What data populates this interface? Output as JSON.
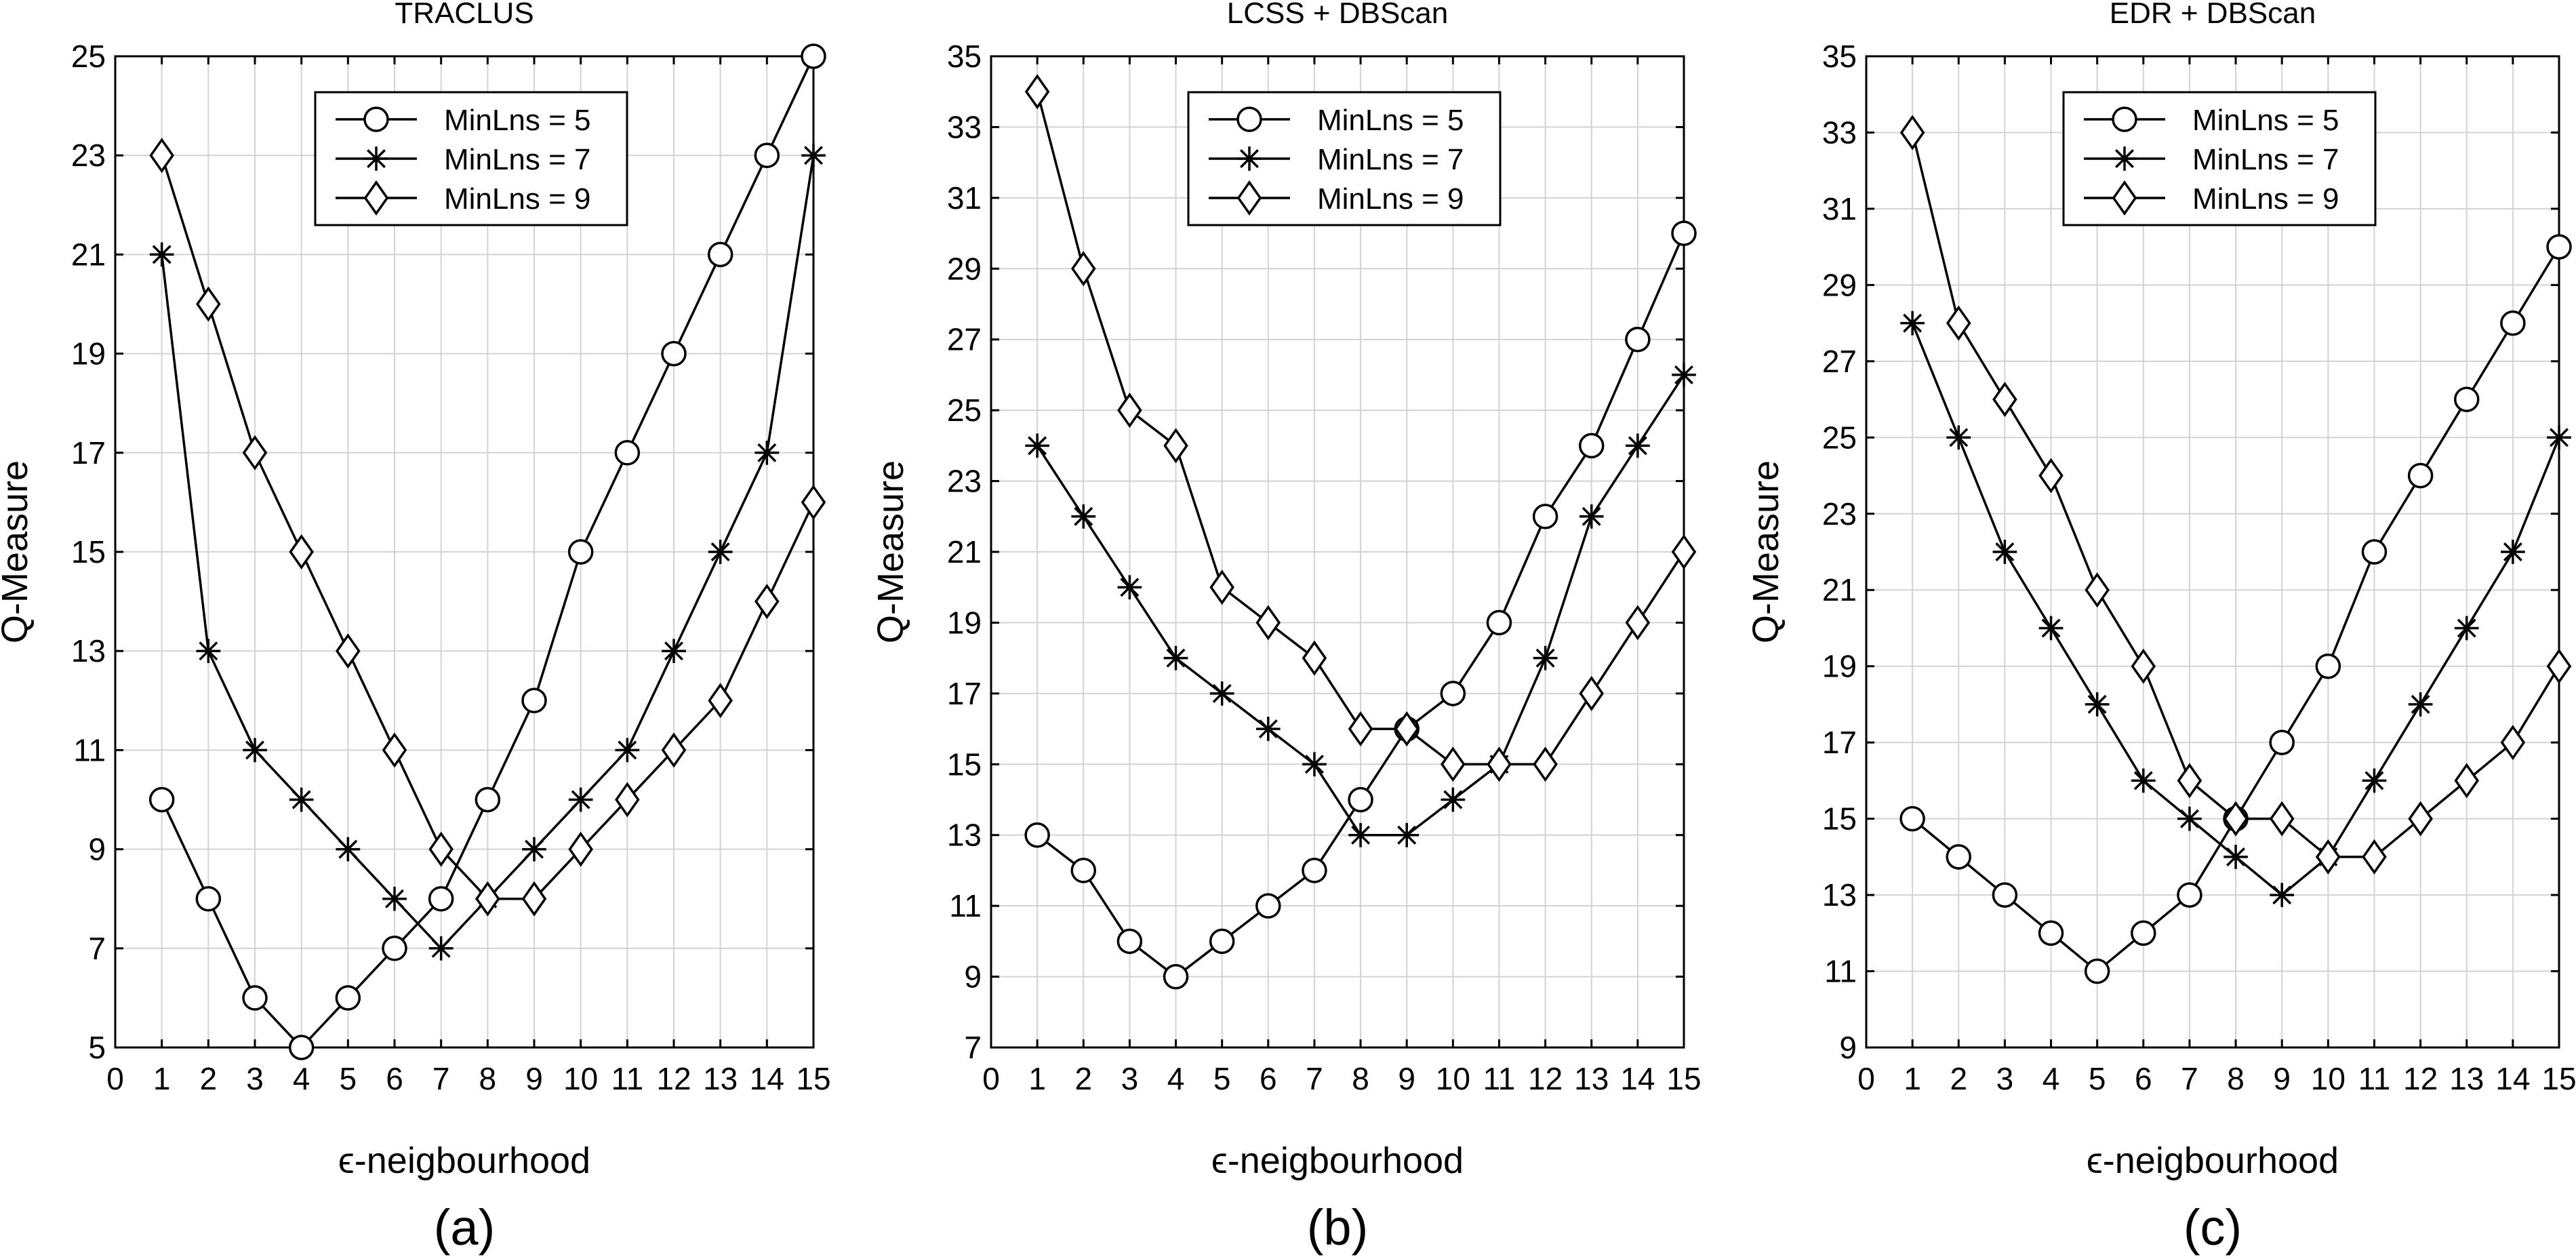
{
  "chart_data": [
    {
      "type": "line",
      "title": "TRACLUS",
      "xlabel": "ϵ-neigbourhood",
      "ylabel": "Q-Measure",
      "caption": "(a)",
      "xlim": [
        0,
        15
      ],
      "ylim": [
        5,
        25
      ],
      "xticks": [
        0,
        1,
        2,
        3,
        4,
        5,
        6,
        7,
        8,
        9,
        10,
        11,
        12,
        13,
        14,
        15
      ],
      "yticks": [
        5,
        7,
        9,
        11,
        13,
        15,
        17,
        19,
        21,
        23,
        25
      ],
      "grid": true,
      "legend_position": "top-center",
      "x": [
        1,
        2,
        3,
        4,
        5,
        6,
        7,
        8,
        9,
        10,
        11,
        12,
        13,
        14,
        15
      ],
      "series": [
        {
          "name": "MinLns = 5",
          "marker": "circle",
          "values": [
            10,
            8,
            6,
            5,
            6,
            7,
            8,
            10,
            12,
            15,
            17,
            19,
            21,
            23,
            25
          ]
        },
        {
          "name": "MinLns = 7",
          "marker": "asterisk",
          "values": [
            21,
            13,
            11,
            10,
            9,
            8,
            7,
            8,
            9,
            10,
            11,
            13,
            15,
            17,
            23
          ]
        },
        {
          "name": "MinLns = 9",
          "marker": "diamond",
          "values": [
            23,
            20,
            17,
            15,
            13,
            11,
            9,
            8,
            8,
            9,
            10,
            11,
            12,
            14,
            16
          ]
        }
      ]
    },
    {
      "type": "line",
      "title": "LCSS + DBScan",
      "xlabel": "ϵ-neigbourhood",
      "ylabel": "Q-Measure",
      "caption": "(b)",
      "xlim": [
        0,
        15
      ],
      "ylim": [
        7,
        35
      ],
      "xticks": [
        0,
        1,
        2,
        3,
        4,
        5,
        6,
        7,
        8,
        9,
        10,
        11,
        12,
        13,
        14,
        15
      ],
      "yticks": [
        7,
        9,
        11,
        13,
        15,
        17,
        19,
        21,
        23,
        25,
        27,
        29,
        31,
        33,
        35
      ],
      "grid": true,
      "legend_position": "top-center",
      "x": [
        1,
        2,
        3,
        4,
        5,
        6,
        7,
        8,
        9,
        10,
        11,
        12,
        13,
        14,
        15
      ],
      "series": [
        {
          "name": "MinLns = 5",
          "marker": "circle",
          "values": [
            13,
            12,
            10,
            9,
            10,
            11,
            12,
            14,
            16,
            17,
            19,
            22,
            24,
            27,
            30
          ]
        },
        {
          "name": "MinLns = 7",
          "marker": "asterisk",
          "values": [
            24,
            22,
            20,
            18,
            17,
            16,
            15,
            13,
            13,
            14,
            15,
            18,
            22,
            24,
            26
          ]
        },
        {
          "name": "MinLns = 9",
          "marker": "diamond",
          "values": [
            34,
            29,
            25,
            24,
            20,
            19,
            18,
            16,
            16,
            15,
            15,
            15,
            17,
            19,
            21
          ]
        }
      ]
    },
    {
      "type": "line",
      "title": "EDR + DBScan",
      "xlabel": "ϵ-neigbourhood",
      "ylabel": "Q-Measure",
      "caption": "(c)",
      "xlim": [
        0,
        15
      ],
      "ylim": [
        9,
        35
      ],
      "xticks": [
        0,
        1,
        2,
        3,
        4,
        5,
        6,
        7,
        8,
        9,
        10,
        11,
        12,
        13,
        14,
        15
      ],
      "yticks": [
        9,
        11,
        13,
        15,
        17,
        19,
        21,
        23,
        25,
        27,
        29,
        31,
        33,
        35
      ],
      "grid": true,
      "legend_position": "top-center",
      "x": [
        1,
        2,
        3,
        4,
        5,
        6,
        7,
        8,
        9,
        10,
        11,
        12,
        13,
        14,
        15
      ],
      "series": [
        {
          "name": "MinLns = 5",
          "marker": "circle",
          "values": [
            15,
            14,
            13,
            12,
            11,
            12,
            13,
            15,
            17,
            19,
            22,
            24,
            26,
            28,
            30
          ]
        },
        {
          "name": "MinLns = 7",
          "marker": "asterisk",
          "values": [
            28,
            25,
            22,
            20,
            18,
            16,
            15,
            14,
            13,
            14,
            16,
            18,
            20,
            22,
            25
          ]
        },
        {
          "name": "MinLns = 9",
          "marker": "diamond",
          "values": [
            33,
            28,
            26,
            24,
            21,
            19,
            16,
            15,
            15,
            14,
            14,
            15,
            16,
            17,
            19
          ]
        }
      ]
    }
  ]
}
